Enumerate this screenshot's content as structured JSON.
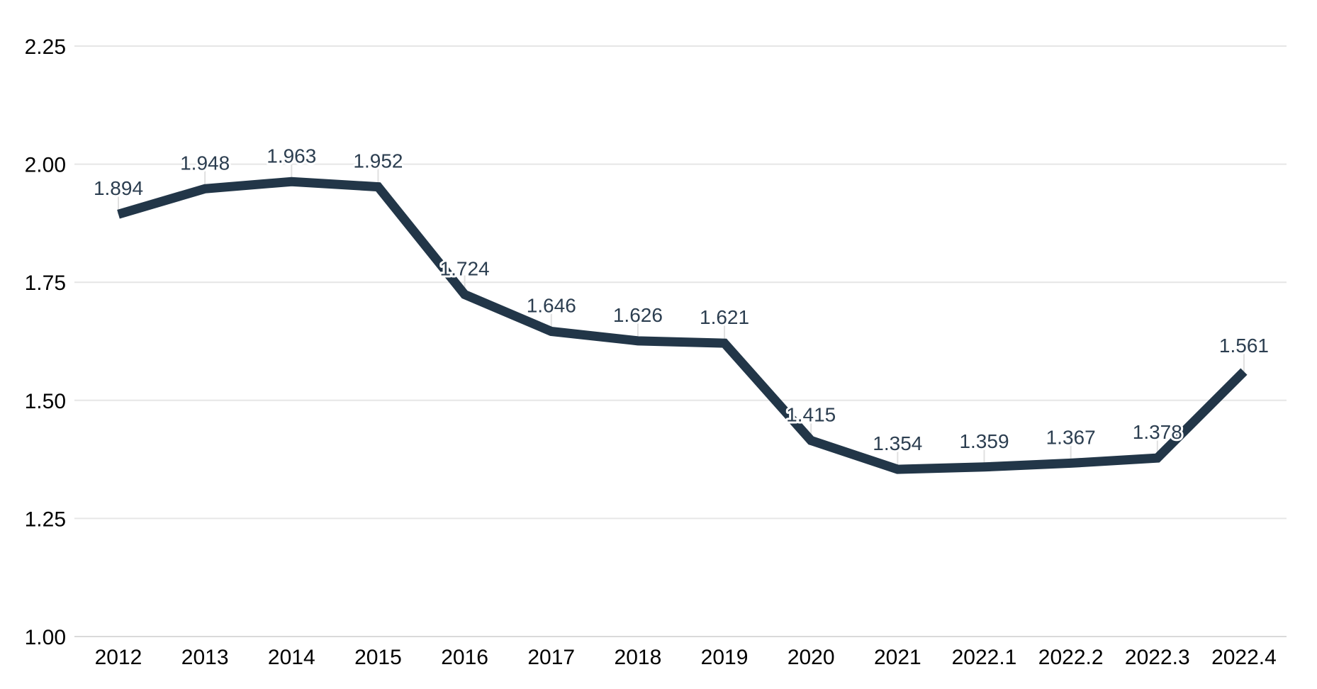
{
  "chart_data": {
    "type": "line",
    "title": "",
    "xlabel": "",
    "ylabel": "",
    "categories": [
      "2012",
      "2013",
      "2014",
      "2015",
      "2016",
      "2017",
      "2018",
      "2019",
      "2020",
      "2021",
      "2022.1",
      "2022.2",
      "2022.3",
      "2022.4"
    ],
    "series": [
      {
        "name": "value",
        "values": [
          1.894,
          1.948,
          1.963,
          1.952,
          1.724,
          1.646,
          1.626,
          1.621,
          1.415,
          1.354,
          1.359,
          1.367,
          1.378,
          1.561
        ]
      }
    ],
    "value_labels": [
      "1.894",
      "1.948",
      "1.963",
      "1.952",
      "1.724",
      "1.646",
      "1.626",
      "1.621",
      "1.415",
      "1.354",
      "1.359",
      "1.367",
      "1.378",
      "1.561"
    ],
    "y_tick_labels": [
      "2.25",
      "2.00",
      "1.75",
      "1.50",
      "1.25",
      "1.00"
    ],
    "ylim": [
      1.0,
      2.25
    ],
    "grid": true,
    "legend": "none",
    "line_color": "#223648",
    "data_label_color": "#2c3e50",
    "grid_color": "#e6e6e6",
    "axis_line_color": "#d9d9d9",
    "connector_tick_color": "#e0e0e0",
    "axis_text_color": "#000000",
    "background_color": "#ffffff"
  }
}
